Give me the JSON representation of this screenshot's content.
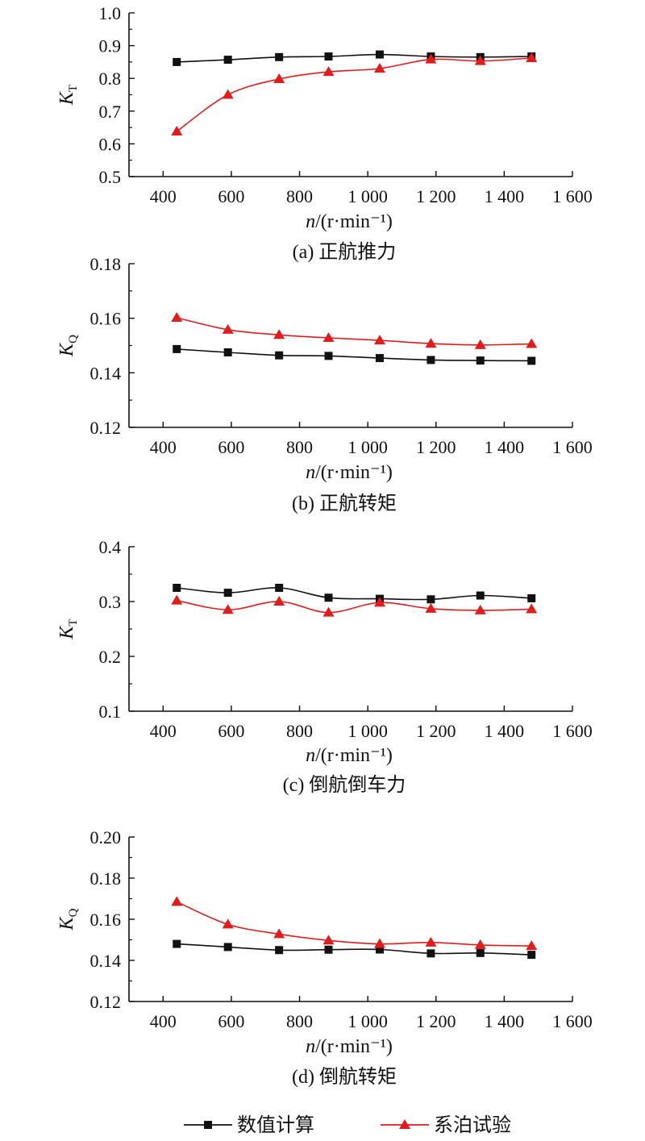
{
  "colors": {
    "numerical": "#111111",
    "test": "#e31b1b",
    "axis": "#111111"
  },
  "legend": {
    "items": [
      {
        "label": "数值计算",
        "marker": "square",
        "color": "#111111"
      },
      {
        "label": "系泊试验",
        "marker": "triangle",
        "color": "#e31b1b"
      }
    ]
  },
  "chart_data": [
    {
      "type": "line",
      "caption": "(a) 正航推力",
      "ylabel": "K_T",
      "xlabel": "n/(r·min⁻¹)",
      "xlim": [
        300,
        1600
      ],
      "xticks": [
        400,
        600,
        800,
        1000,
        1200,
        1400,
        1600
      ],
      "xtick_labels": [
        "400",
        "600",
        "800",
        "1 000",
        "1 200",
        "1 400",
        "1 600"
      ],
      "ylim": [
        0.5,
        1.0
      ],
      "yticks": [
        0.5,
        0.6,
        0.7,
        0.8,
        0.9,
        1.0
      ],
      "ytick_labels": [
        "0.5",
        "0.6",
        "0.7",
        "0.8",
        "0.9",
        "1.0"
      ],
      "x": [
        440,
        590,
        740,
        885,
        1035,
        1185,
        1330,
        1480
      ],
      "series": [
        {
          "name": "数值计算",
          "values": [
            0.85,
            0.857,
            0.865,
            0.867,
            0.873,
            0.867,
            0.865,
            0.867
          ]
        },
        {
          "name": "系泊试验",
          "values": [
            0.638,
            0.75,
            0.798,
            0.82,
            0.83,
            0.858,
            0.853,
            0.862
          ]
        }
      ]
    },
    {
      "type": "line",
      "caption": "(b) 正航转矩",
      "ylabel": "K_Q",
      "xlabel": "n/(r·min⁻¹)",
      "xlim": [
        300,
        1600
      ],
      "xticks": [
        400,
        600,
        800,
        1000,
        1200,
        1400,
        1600
      ],
      "xtick_labels": [
        "400",
        "600",
        "800",
        "1 000",
        "1 200",
        "1 400",
        "1 600"
      ],
      "ylim": [
        0.12,
        0.18
      ],
      "yticks": [
        0.12,
        0.14,
        0.16,
        0.18
      ],
      "ytick_labels": [
        "0.12",
        "0.14",
        "0.16",
        "0.18"
      ],
      "x": [
        440,
        590,
        740,
        885,
        1035,
        1185,
        1330,
        1480
      ],
      "series": [
        {
          "name": "数值计算",
          "values": [
            0.1487,
            0.1475,
            0.1464,
            0.1462,
            0.1454,
            0.1447,
            0.1445,
            0.1444
          ]
        },
        {
          "name": "系泊试验",
          "values": [
            0.1602,
            0.1558,
            0.1539,
            0.1528,
            0.1519,
            0.1507,
            0.1502,
            0.1506
          ]
        }
      ]
    },
    {
      "type": "line",
      "caption": "(c) 倒航倒车力",
      "ylabel": "K_T",
      "xlabel": "n/(r·min⁻¹)",
      "xlim": [
        300,
        1600
      ],
      "xticks": [
        400,
        600,
        800,
        1000,
        1200,
        1400,
        1600
      ],
      "xtick_labels": [
        "400",
        "600",
        "800",
        "1 000",
        "1 200",
        "1 400",
        "1 600"
      ],
      "ylim": [
        0.1,
        0.4
      ],
      "yticks": [
        0.1,
        0.2,
        0.3,
        0.4
      ],
      "ytick_labels": [
        "0.1",
        "0.2",
        "0.3",
        "0.4"
      ],
      "x": [
        440,
        590,
        740,
        885,
        1035,
        1185,
        1330,
        1480
      ],
      "series": [
        {
          "name": "数值计算",
          "values": [
            0.325,
            0.316,
            0.325,
            0.307,
            0.305,
            0.304,
            0.311,
            0.306
          ]
        },
        {
          "name": "系泊试验",
          "values": [
            0.302,
            0.285,
            0.3,
            0.28,
            0.298,
            0.287,
            0.284,
            0.286
          ]
        }
      ]
    },
    {
      "type": "line",
      "caption": "(d) 倒航转矩",
      "ylabel": "K_Q",
      "xlabel": "n/(r·min⁻¹)",
      "xlim": [
        300,
        1600
      ],
      "xticks": [
        400,
        600,
        800,
        1000,
        1200,
        1400,
        1600
      ],
      "xtick_labels": [
        "400",
        "600",
        "800",
        "1 000",
        "1 200",
        "1 400",
        "1 600"
      ],
      "ylim": [
        0.12,
        0.2
      ],
      "yticks": [
        0.12,
        0.14,
        0.16,
        0.18,
        0.2
      ],
      "ytick_labels": [
        "0.12",
        "0.14",
        "0.16",
        "0.18",
        "0.20"
      ],
      "x": [
        440,
        590,
        740,
        885,
        1035,
        1185,
        1330,
        1480
      ],
      "series": [
        {
          "name": "数值计算",
          "values": [
            0.148,
            0.1465,
            0.145,
            0.1452,
            0.1453,
            0.1434,
            0.1436,
            0.1427
          ]
        },
        {
          "name": "系泊试验",
          "values": [
            0.1685,
            0.1575,
            0.1528,
            0.1497,
            0.148,
            0.1487,
            0.1475,
            0.147
          ]
        }
      ]
    }
  ]
}
